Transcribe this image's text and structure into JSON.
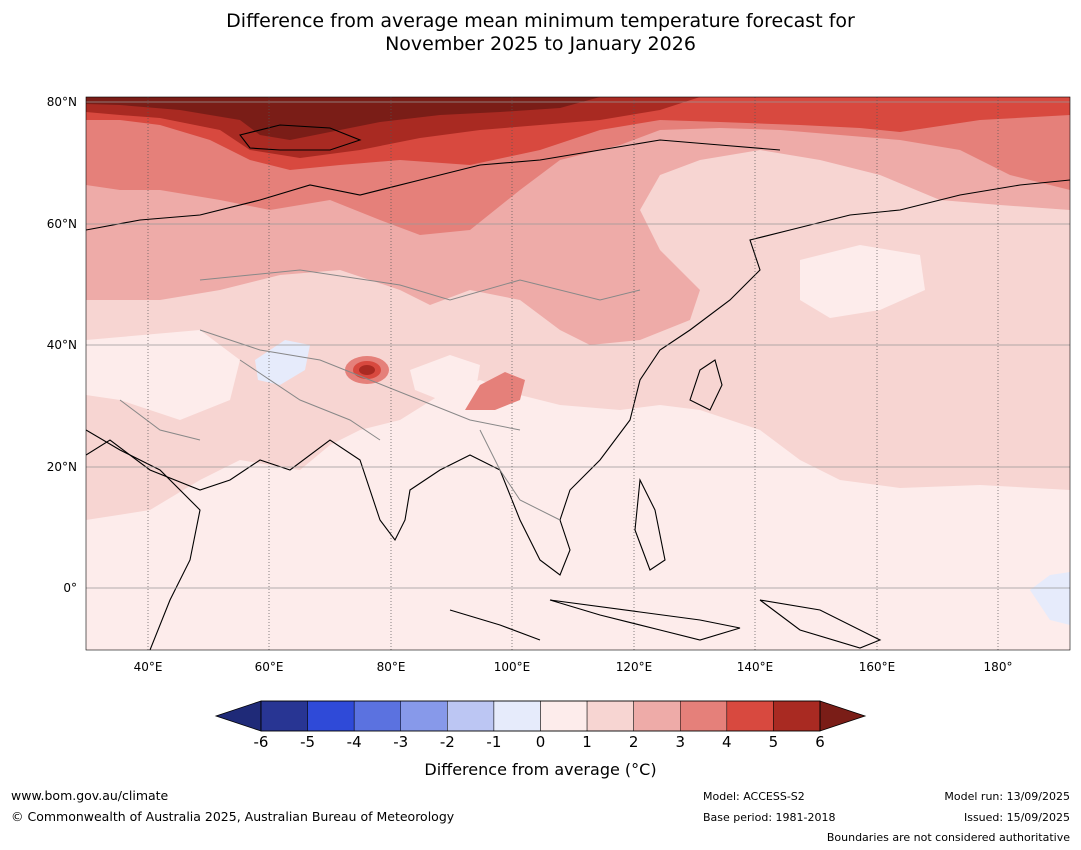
{
  "title_line1": "Difference from average mean minimum temperature forecast for",
  "title_line2": "November 2025 to January 2026",
  "lat_labels": [
    "80°N",
    "60°N",
    "40°N",
    "20°N",
    "0°"
  ],
  "lon_labels": [
    "40°E",
    "60°E",
    "80°E",
    "100°E",
    "120°E",
    "140°E",
    "160°E",
    "180°"
  ],
  "colorbar": {
    "ticks": [
      "-6",
      "-5",
      "-4",
      "-3",
      "-2",
      "-1",
      "0",
      "1",
      "2",
      "3",
      "4",
      "5",
      "6"
    ],
    "colors": [
      "#283593",
      "#2f4ad8",
      "#5b72e0",
      "#8799ea",
      "#bcc6f3",
      "#e6ebfb",
      "#fdeceb",
      "#f7d5d2",
      "#eeaba8",
      "#e5807a",
      "#d8493f",
      "#a92a22"
    ],
    "under_color": "#1f2a78",
    "over_color": "#7a1d17",
    "label": "Difference from average (°C)"
  },
  "footer": {
    "website": "www.bom.gov.au/climate",
    "copyright": "© Commonwealth of Australia 2025, Australian Bureau of Meteorology",
    "model": "Model: ACCESS-S2",
    "base_period": "Base period: 1981-2018",
    "model_run": "Model run: 13/09/2025",
    "issued": "Issued: 15/09/2025",
    "disclaimer": "Boundaries are not considered authoritative"
  }
}
